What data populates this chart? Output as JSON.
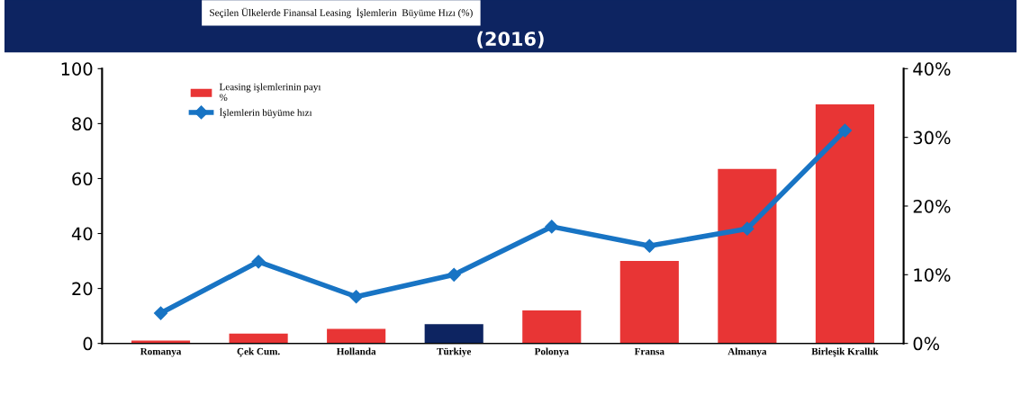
{
  "chart_data": {
    "type": "bar",
    "title": "Seçilen Ülkelerde Finansal Leasing  İşlemlerin  Büyüme Hızı (%)",
    "subtitle": "(2016)",
    "categories": [
      "Romanya",
      "Çek Cum.",
      "Hollanda",
      "Türkiye",
      "Polonya",
      "Fransa",
      "Almanya",
      "Birleşik Krallık"
    ],
    "series": [
      {
        "name": "Leasing işlemlerinin payı\n%",
        "colors": [
          "#e83535",
          "#e83535",
          "#e83535",
          "#0d2461",
          "#e83535",
          "#e83535",
          "#e83535",
          "#e83535"
        ],
        "color": "#e83535",
        "values": [
          1,
          3.6,
          5.3,
          7,
          12,
          30,
          63.5,
          87
        ]
      },
      {
        "name": "İşlemlerin büyüme hızı",
        "type": "line",
        "axis": "y2",
        "color": "#1874c4",
        "marker": "diamond",
        "values": [
          4.4,
          11.9,
          6.8,
          10,
          17,
          14.2,
          16.7,
          31
        ]
      }
    ],
    "ylim": [
      0,
      100
    ],
    "yticks": [
      0,
      20,
      40,
      60,
      80,
      100
    ],
    "y2lim": [
      0,
      40
    ],
    "y2ticks": [
      {
        "value": 0,
        "label": "0%"
      },
      {
        "value": 10,
        "label": "10%"
      },
      {
        "value": 20,
        "label": "20%"
      },
      {
        "value": 30,
        "label": "30%"
      },
      {
        "value": 40,
        "label": "40%"
      }
    ],
    "legend": "top left",
    "grid": false
  }
}
